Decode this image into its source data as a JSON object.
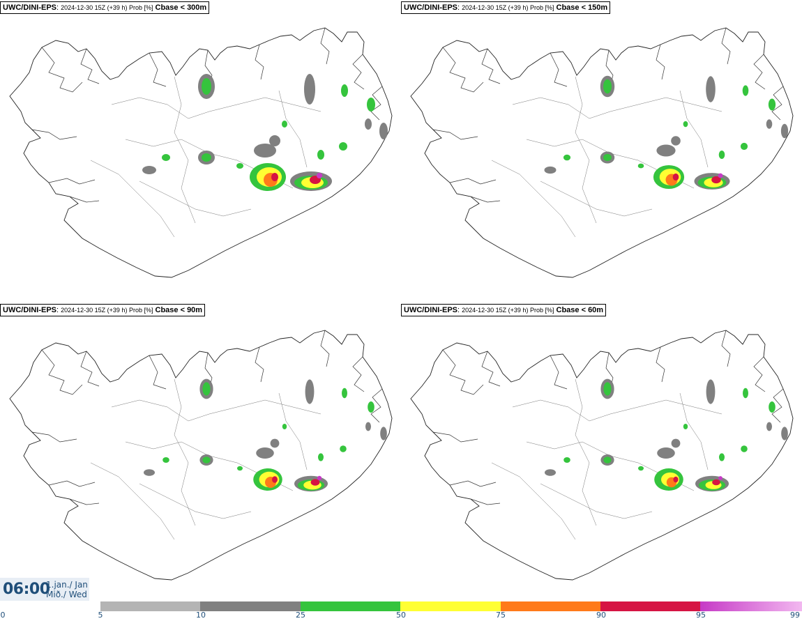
{
  "panels": [
    {
      "model": "UWC/DINI-EPS",
      "meta": "2024-12-30 15Z (+39 h) Prob [%]",
      "threshold": "Cbase < 300m",
      "scale": 1.0
    },
    {
      "model": "UWC/DINI-EPS",
      "meta": "2024-12-30 15Z (+39 h) Prob [%]",
      "threshold": "Cbase < 150m",
      "scale": 0.85
    },
    {
      "model": "UWC/DINI-EPS",
      "meta": "2024-12-30 15Z (+39 h) Prob [%]",
      "threshold": "Cbase < 90m",
      "scale": 0.8
    },
    {
      "model": "UWC/DINI-EPS",
      "meta": "2024-12-30 15Z (+39 h) Prob [%]",
      "threshold": "Cbase < 60m",
      "scale": 0.72
    }
  ],
  "valid_time": {
    "time": "06:00",
    "date_line1": "1.jan./ Jan",
    "date_line2": "Mið./ Wed"
  },
  "legend": {
    "ticks": [
      "0",
      "5",
      "10",
      "25",
      "50",
      "75",
      "90",
      "95",
      "99"
    ],
    "colors": {
      "p5": "#b4b4b4",
      "p10": "#808080",
      "p25": "#35c43d",
      "p50": "#ffff33",
      "p75": "#ff7a1a",
      "p90": "#d61443",
      "p95": "#c63ac6",
      "p99": "#f2b8f0"
    }
  }
}
